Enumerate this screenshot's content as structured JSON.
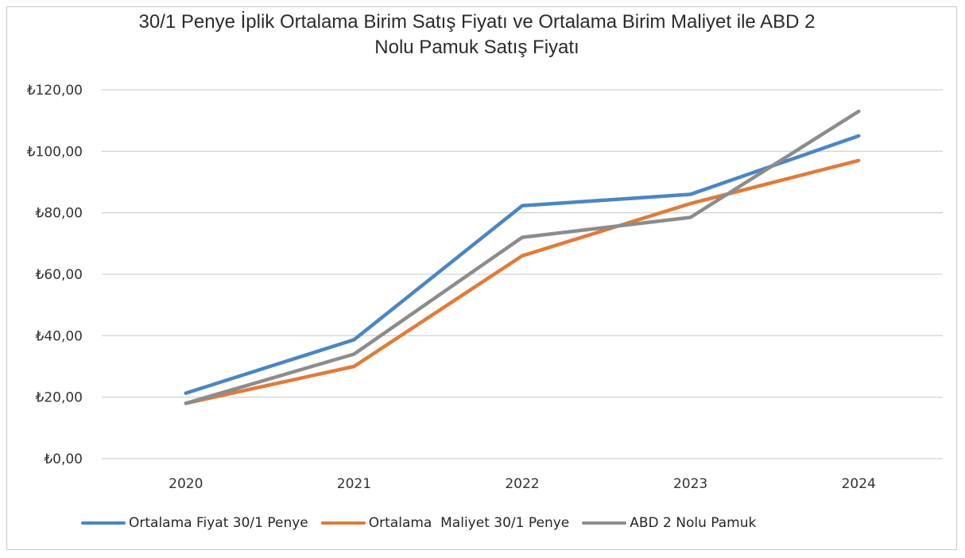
{
  "colors": {
    "series1": "#4a86c5",
    "series2": "#e07b39",
    "series3": "#8c8c8c",
    "grid": "#d4d4d4"
  },
  "chart_data": {
    "type": "line",
    "title_line1": "30/1 Penye İplik Ortalama Birim Satış Fiyatı ve Ortalama Birim Maliyet ile ABD 2",
    "title_line2": "Nolu Pamuk Satış Fiyatı",
    "xlabel": "",
    "ylabel": "",
    "categories": [
      "2020",
      "2021",
      "2022",
      "2023",
      "2024"
    ],
    "ylim": [
      0,
      120
    ],
    "yticks": [
      0,
      20,
      40,
      60,
      80,
      100,
      120
    ],
    "ytick_labels": [
      "₺0,00",
      "₺20,00",
      "₺40,00",
      "₺60,00",
      "₺80,00",
      "₺100,00",
      "₺120,00"
    ],
    "grid": true,
    "legend_position": "bottom",
    "series": [
      {
        "name": "Ortalama Fiyat 30/1 Penye",
        "values": [
          21.3,
          38.7,
          82.3,
          86.0,
          105.0
        ]
      },
      {
        "name": "Ortalama  Maliyet 30/1 Penye",
        "values": [
          18.0,
          30.0,
          66.0,
          83.0,
          97.0
        ]
      },
      {
        "name": "ABD 2 Nolu Pamuk",
        "values": [
          18.0,
          34.0,
          72.0,
          78.5,
          113.0
        ]
      }
    ]
  }
}
